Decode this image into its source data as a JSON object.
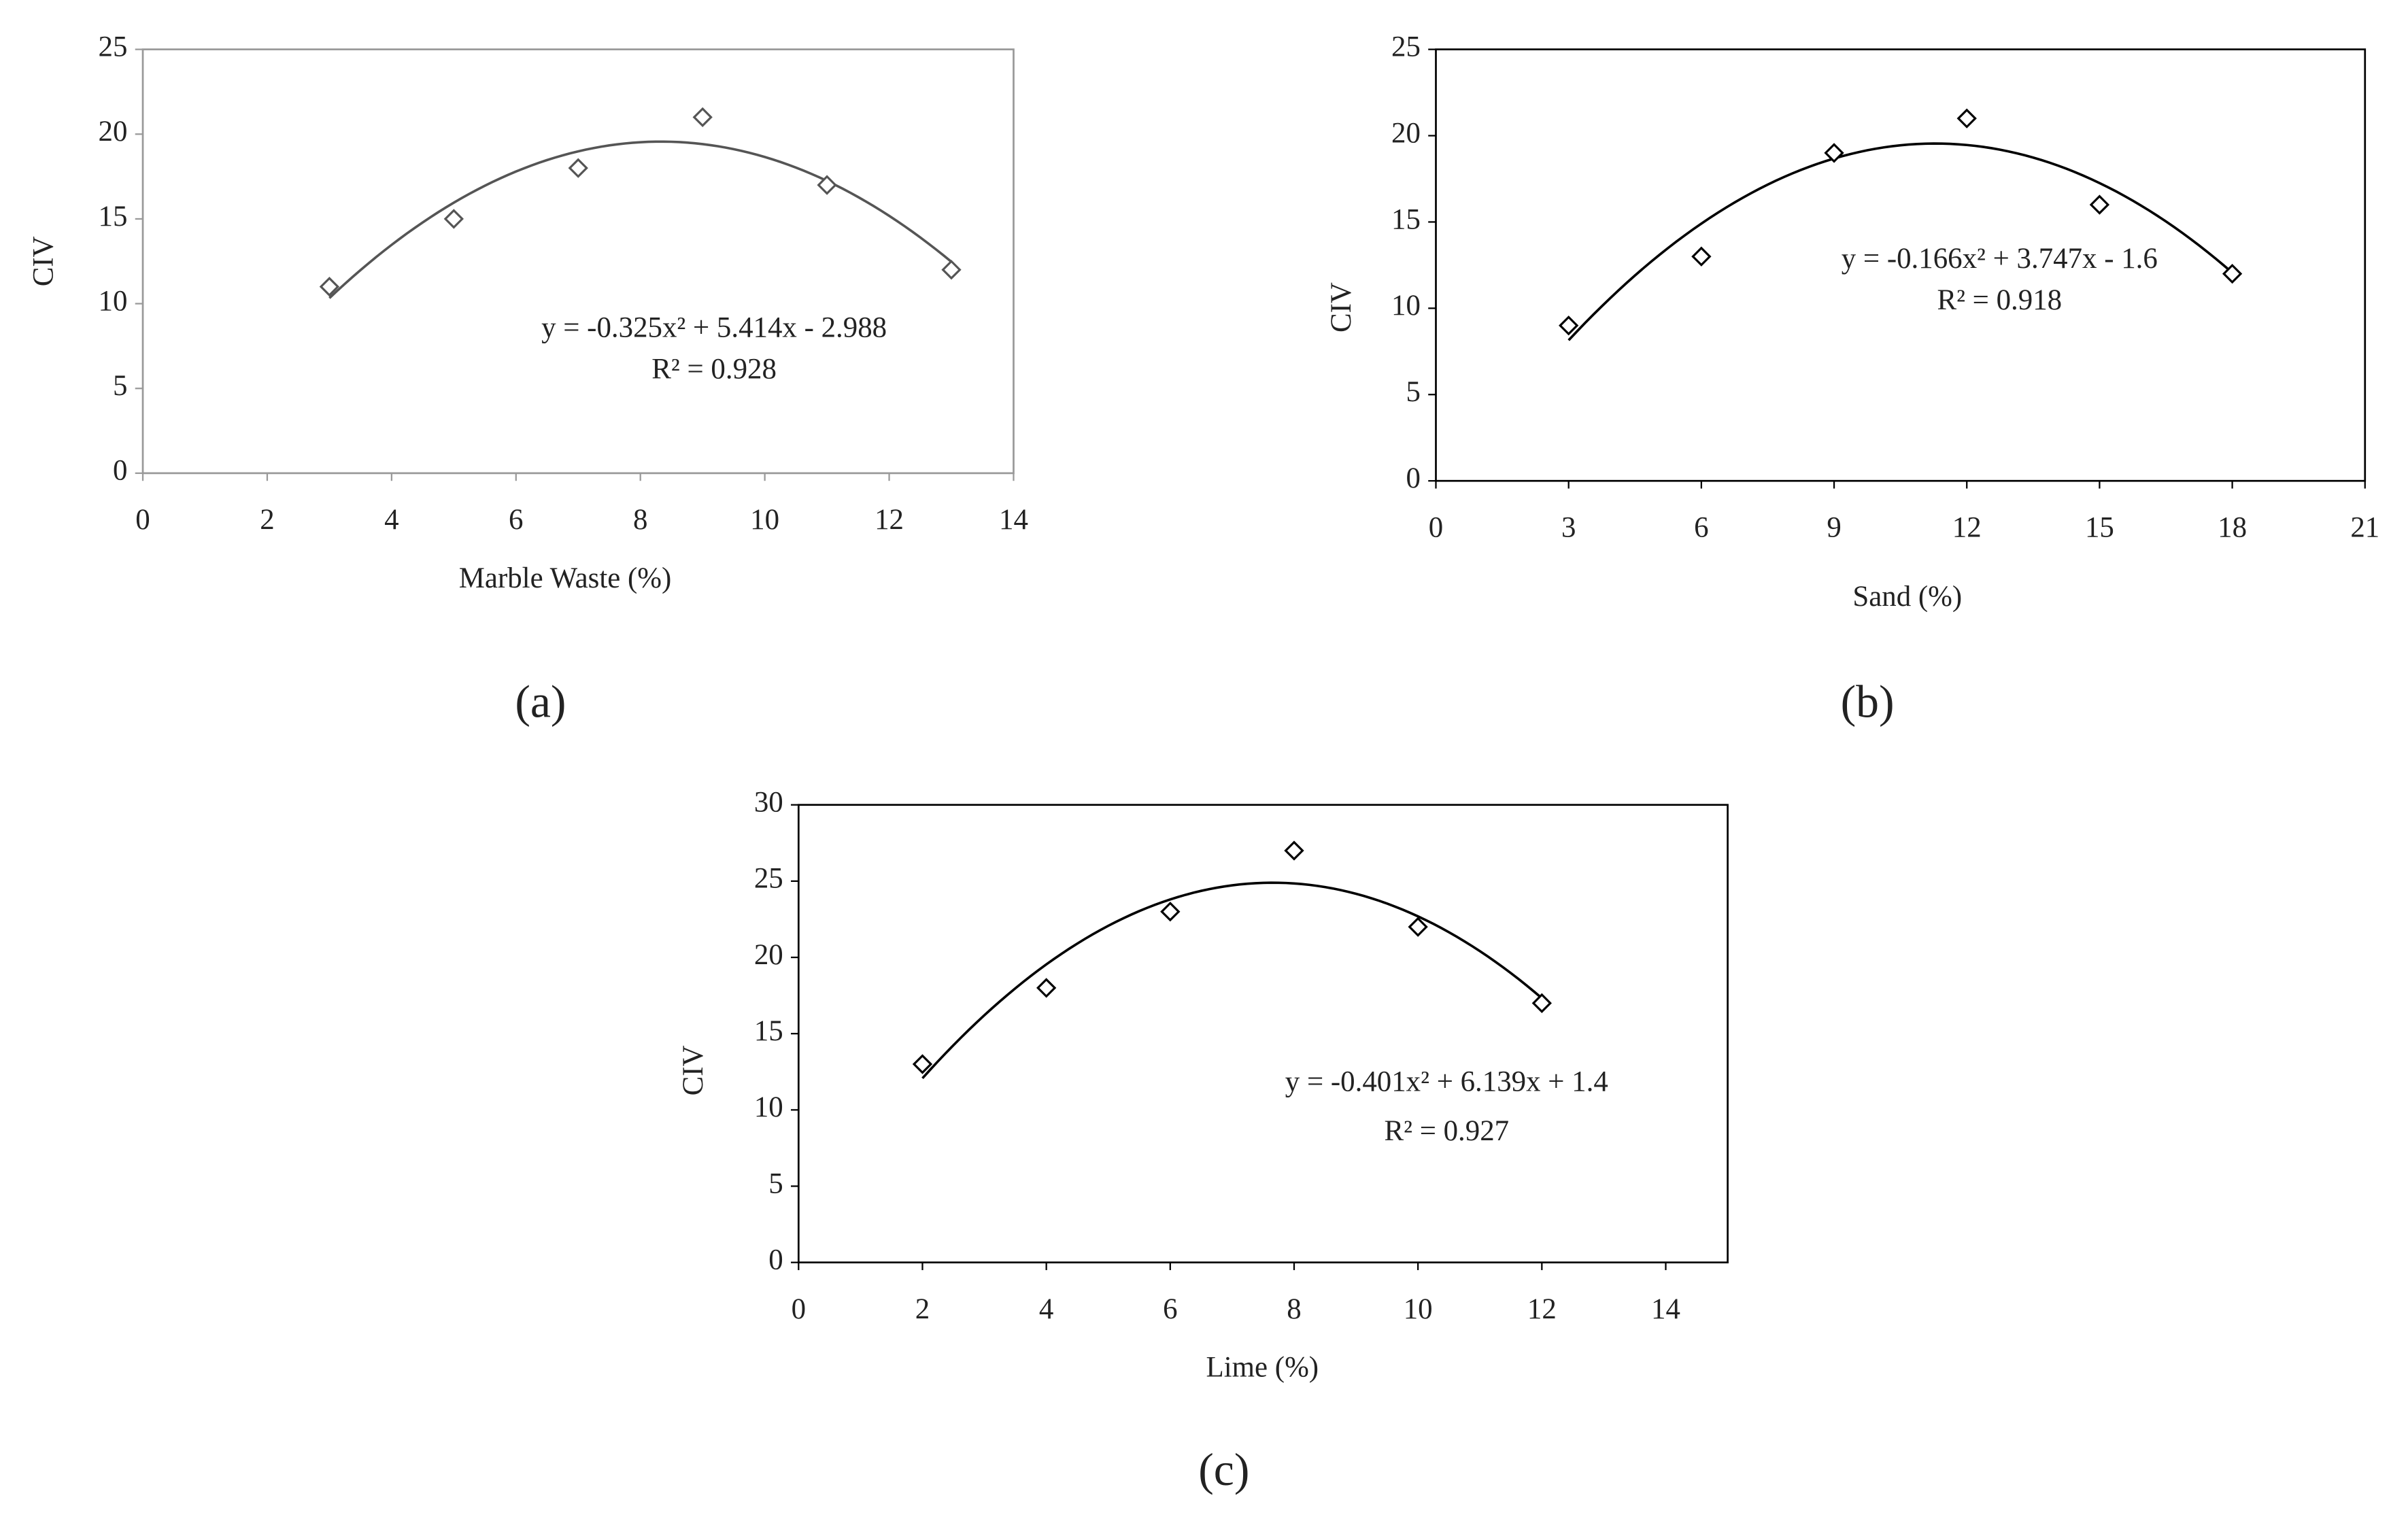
{
  "chart_data": [
    {
      "type": "scatter",
      "panel_label": "(a)",
      "x_label": "Marble Waste  (%)",
      "y_label": "CIV",
      "x": [
        3,
        5,
        7,
        9,
        11,
        13
      ],
      "values": [
        11,
        15,
        18,
        21,
        17,
        12
      ],
      "xlim": [
        0,
        14
      ],
      "xticks": [
        0,
        2,
        4,
        6,
        8,
        10,
        12,
        14
      ],
      "ylim": [
        0,
        25
      ],
      "yticks": [
        0,
        5,
        10,
        15,
        20,
        25
      ],
      "equation": "y = -0.325x² + 5.414x - 2.988",
      "r_squared": "R² = 0.928",
      "trend_coefficients": [
        -0.325,
        5.414,
        -2.988
      ],
      "color": "#555555",
      "frame_color": "#999999"
    },
    {
      "type": "scatter",
      "panel_label": "(b)",
      "x_label": "Sand (%)",
      "y_label": "CIV",
      "x": [
        3,
        6,
        9,
        12,
        15,
        18
      ],
      "values": [
        9,
        13,
        19,
        21,
        16,
        12
      ],
      "xlim": [
        0,
        21
      ],
      "xticks": [
        0,
        3,
        6,
        9,
        12,
        15,
        18,
        21
      ],
      "ylim": [
        0,
        25
      ],
      "yticks": [
        0,
        5,
        10,
        15,
        20,
        25
      ],
      "equation": "y = -0.166x² + 3.747x - 1.6",
      "r_squared": "R² = 0.918",
      "trend_coefficients": [
        -0.166,
        3.747,
        -1.6
      ],
      "color": "#000000",
      "frame_color": "#000000"
    },
    {
      "type": "scatter",
      "panel_label": "(c)",
      "x_label": "Lime (%)",
      "y_label": "CIV",
      "x": [
        2,
        4,
        6,
        8,
        10,
        12
      ],
      "values": [
        13,
        18,
        23,
        27,
        22,
        17
      ],
      "xlim": [
        0,
        15
      ],
      "xticks": [
        0,
        2,
        4,
        6,
        8,
        10,
        12,
        14
      ],
      "ylim": [
        0,
        30
      ],
      "yticks": [
        0,
        5,
        10,
        15,
        20,
        25,
        30
      ],
      "equation": "y = -0.401x² + 6.139x + 1.4",
      "r_squared": "R² = 0.927",
      "trend_coefficients": [
        -0.401,
        6.139,
        1.4
      ],
      "color": "#000000",
      "frame_color": "#000000"
    }
  ]
}
